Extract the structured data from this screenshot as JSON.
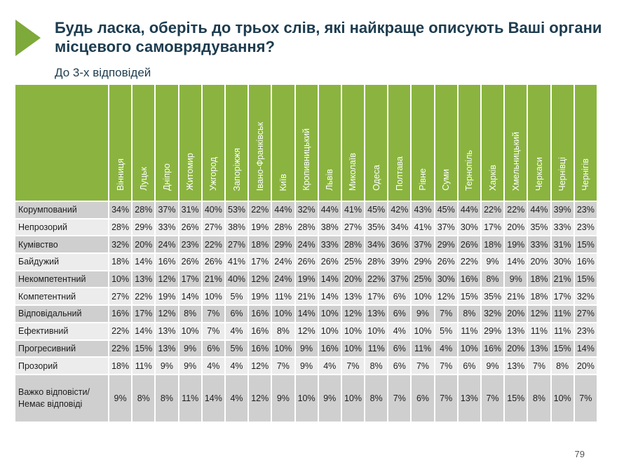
{
  "title": "Будь ласка, оберіть до трьох слів, які найкраще описують Ваші органи місцевого самоврядування?",
  "subtitle": "До 3-х відповідей",
  "page_number": "79",
  "accent_color": "#8ab43f",
  "cities": [
    "Вінниця",
    "Луцьк",
    "Дніпро",
    "Житомир",
    "Ужгород",
    "Запоріжжя",
    "Івано-Франківськ",
    "Київ",
    "Кропивницький",
    "Львів",
    "Миколаїв",
    "Одеса",
    "Полтава",
    "Рівне",
    "Суми",
    "Тернопіль",
    "Харків",
    "Хмельницький",
    "Черкаси",
    "Чернівці",
    "Чернігів"
  ],
  "rows": [
    {
      "label": "Корумпований",
      "values": [
        "34%",
        "28%",
        "37%",
        "31%",
        "40%",
        "53%",
        "22%",
        "44%",
        "32%",
        "44%",
        "41%",
        "45%",
        "42%",
        "43%",
        "45%",
        "44%",
        "22%",
        "22%",
        "44%",
        "39%",
        "23%"
      ]
    },
    {
      "label": "Непрозорий",
      "values": [
        "28%",
        "29%",
        "33%",
        "26%",
        "27%",
        "38%",
        "19%",
        "28%",
        "28%",
        "38%",
        "27%",
        "35%",
        "34%",
        "41%",
        "37%",
        "30%",
        "17%",
        "20%",
        "35%",
        "33%",
        "23%"
      ]
    },
    {
      "label": "Кумівство",
      "values": [
        "32%",
        "20%",
        "24%",
        "23%",
        "22%",
        "27%",
        "18%",
        "29%",
        "24%",
        "33%",
        "28%",
        "34%",
        "36%",
        "37%",
        "29%",
        "26%",
        "18%",
        "19%",
        "33%",
        "31%",
        "15%"
      ]
    },
    {
      "label": "Байдужий",
      "values": [
        "18%",
        "14%",
        "16%",
        "26%",
        "26%",
        "41%",
        "17%",
        "24%",
        "26%",
        "26%",
        "25%",
        "28%",
        "39%",
        "29%",
        "26%",
        "22%",
        "9%",
        "14%",
        "20%",
        "30%",
        "16%"
      ]
    },
    {
      "label": "Некомпетентний",
      "values": [
        "10%",
        "13%",
        "12%",
        "17%",
        "21%",
        "40%",
        "12%",
        "24%",
        "19%",
        "14%",
        "20%",
        "22%",
        "37%",
        "25%",
        "30%",
        "16%",
        "8%",
        "9%",
        "18%",
        "21%",
        "15%"
      ]
    },
    {
      "label": "Компетентний",
      "values": [
        "27%",
        "22%",
        "19%",
        "14%",
        "10%",
        "5%",
        "19%",
        "11%",
        "21%",
        "14%",
        "13%",
        "17%",
        "6%",
        "10%",
        "12%",
        "15%",
        "35%",
        "21%",
        "18%",
        "17%",
        "32%"
      ]
    },
    {
      "label": "Відповідальний",
      "values": [
        "16%",
        "17%",
        "12%",
        "8%",
        "7%",
        "6%",
        "16%",
        "10%",
        "14%",
        "10%",
        "12%",
        "13%",
        "6%",
        "9%",
        "7%",
        "8%",
        "32%",
        "20%",
        "12%",
        "11%",
        "27%"
      ]
    },
    {
      "label": "Ефективний",
      "values": [
        "22%",
        "14%",
        "13%",
        "10%",
        "7%",
        "4%",
        "16%",
        "8%",
        "12%",
        "10%",
        "10%",
        "10%",
        "4%",
        "10%",
        "5%",
        "11%",
        "29%",
        "13%",
        "11%",
        "11%",
        "23%"
      ]
    },
    {
      "label": "Прогресивний",
      "values": [
        "22%",
        "15%",
        "13%",
        "9%",
        "6%",
        "5%",
        "16%",
        "10%",
        "9%",
        "16%",
        "10%",
        "11%",
        "6%",
        "11%",
        "4%",
        "10%",
        "16%",
        "20%",
        "13%",
        "15%",
        "14%"
      ]
    },
    {
      "label": "Прозорий",
      "values": [
        "18%",
        "11%",
        "9%",
        "9%",
        "4%",
        "4%",
        "12%",
        "7%",
        "9%",
        "4%",
        "7%",
        "8%",
        "6%",
        "7%",
        "7%",
        "6%",
        "9%",
        "13%",
        "7%",
        "8%",
        "20%"
      ]
    },
    {
      "label": "Важко відповісти/Немає відповіді",
      "values": [
        "9%",
        "8%",
        "8%",
        "11%",
        "14%",
        "4%",
        "12%",
        "9%",
        "10%",
        "9%",
        "10%",
        "8%",
        "7%",
        "6%",
        "7%",
        "13%",
        "7%",
        "15%",
        "8%",
        "10%",
        "7%"
      ]
    }
  ]
}
